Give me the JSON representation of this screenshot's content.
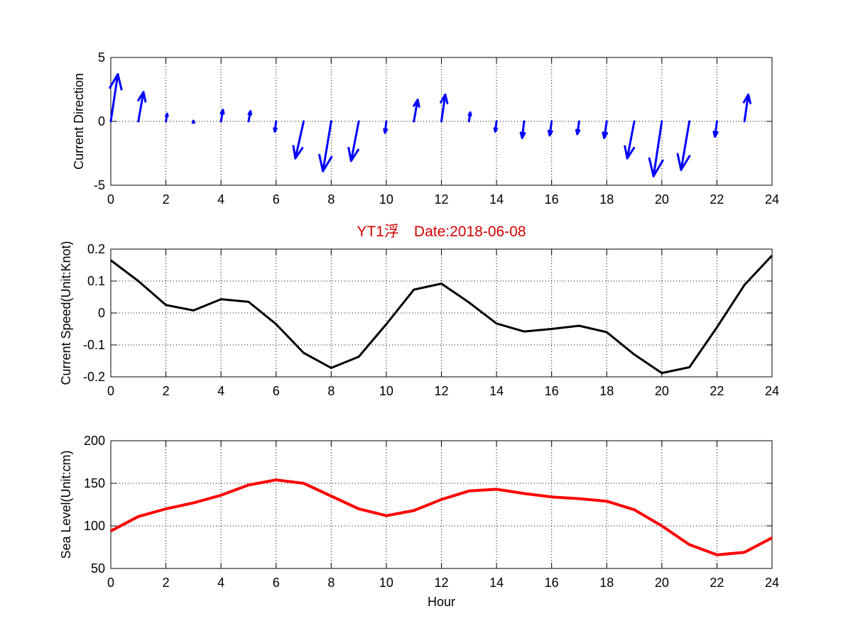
{
  "title": "YT1浮　Date:2018-06-08",
  "title_color": "#d40000",
  "xlabel": "Hour",
  "chart_data": [
    {
      "type": "quiver",
      "ylabel": "Current Direction",
      "xlim": [
        0,
        24
      ],
      "ylim": [
        -5,
        5
      ],
      "xticks": [
        0,
        2,
        4,
        6,
        8,
        10,
        12,
        14,
        16,
        18,
        20,
        22,
        24
      ],
      "yticks": [
        -5,
        0,
        5
      ],
      "grid": true,
      "color": "#0000ff",
      "x": [
        0,
        1,
        2,
        3,
        4,
        5,
        6,
        7,
        8,
        9,
        10,
        11,
        12,
        13,
        14,
        15,
        16,
        17,
        18,
        19,
        20,
        21,
        22,
        23
      ],
      "u": [
        0.55,
        0.4,
        0.1,
        0.0,
        0.15,
        0.15,
        -0.1,
        -0.65,
        -0.65,
        -0.6,
        -0.1,
        0.3,
        0.3,
        0.1,
        -0.1,
        -0.15,
        -0.15,
        -0.15,
        -0.2,
        -0.55,
        -0.65,
        -0.65,
        -0.15,
        0.3
      ],
      "v": [
        3.7,
        2.3,
        0.6,
        0.05,
        0.9,
        0.8,
        -0.8,
        -2.9,
        -3.9,
        -3.1,
        -0.9,
        1.7,
        2.1,
        0.7,
        -0.8,
        -1.3,
        -1.1,
        -1.0,
        -1.3,
        -2.9,
        -4.3,
        -3.8,
        -1.2,
        2.1
      ]
    },
    {
      "type": "line",
      "ylabel": "Current Speed(Unit:Knot)",
      "xlim": [
        0,
        24
      ],
      "ylim": [
        -0.2,
        0.2
      ],
      "xticks": [
        0,
        2,
        4,
        6,
        8,
        10,
        12,
        14,
        16,
        18,
        20,
        22,
        24
      ],
      "yticks": [
        -0.2,
        -0.1,
        0,
        0.1,
        0.2
      ],
      "ytick_labels": [
        "-0.2",
        "-0.1",
        "0",
        "0.1",
        "0.2"
      ],
      "grid": true,
      "color": "#000000",
      "x": [
        0,
        1,
        2,
        3,
        4,
        5,
        6,
        7,
        8,
        9,
        10,
        11,
        12,
        13,
        14,
        15,
        16,
        17,
        18,
        19,
        20,
        21,
        22,
        23,
        24
      ],
      "y": [
        0.165,
        0.1,
        0.025,
        0.008,
        0.043,
        0.035,
        -0.035,
        -0.125,
        -0.172,
        -0.137,
        -0.035,
        0.073,
        0.092,
        0.033,
        -0.033,
        -0.058,
        -0.05,
        -0.04,
        -0.06,
        -0.13,
        -0.188,
        -0.17,
        -0.045,
        0.088,
        0.18
      ]
    },
    {
      "type": "line",
      "ylabel": "Sea Level(Unit:cm)",
      "xlim": [
        0,
        24
      ],
      "ylim": [
        50,
        200
      ],
      "xticks": [
        0,
        2,
        4,
        6,
        8,
        10,
        12,
        14,
        16,
        18,
        20,
        22,
        24
      ],
      "yticks": [
        50,
        100,
        150,
        200
      ],
      "grid": true,
      "color": "#ff0000",
      "x": [
        0,
        1,
        2,
        3,
        4,
        5,
        6,
        7,
        8,
        9,
        10,
        11,
        12,
        13,
        14,
        15,
        16,
        17,
        18,
        19,
        20,
        21,
        22,
        23,
        24
      ],
      "y": [
        94,
        111,
        120,
        127,
        136,
        148,
        154,
        150,
        135,
        120,
        112,
        118,
        131,
        141,
        143,
        138,
        134,
        132,
        129,
        119,
        100,
        78,
        66,
        69,
        86
      ]
    }
  ]
}
